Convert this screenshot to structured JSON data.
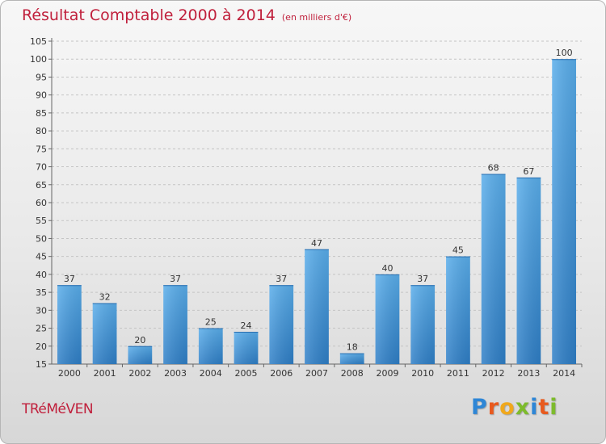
{
  "chart_data": {
    "type": "bar",
    "title": "Résultat Comptable 2000 à 2014",
    "subtitle": "(en milliers d'€)",
    "categories": [
      "2000",
      "2001",
      "2002",
      "2003",
      "2004",
      "2005",
      "2006",
      "2007",
      "2008",
      "2009",
      "2010",
      "2011",
      "2012",
      "2013",
      "2014"
    ],
    "values": [
      37,
      32,
      20,
      37,
      25,
      24,
      37,
      47,
      18,
      40,
      37,
      45,
      68,
      67,
      100
    ],
    "ylim": [
      15,
      105
    ],
    "yticks": [
      15,
      20,
      25,
      30,
      35,
      40,
      45,
      50,
      55,
      60,
      65,
      70,
      75,
      80,
      85,
      90,
      95,
      100,
      105
    ],
    "grid": "horizontal dashed",
    "bar_color": "#3f93d9"
  },
  "commune": "TRéMéVEN",
  "logo": {
    "letters": [
      "P",
      "r",
      "o",
      "x",
      "i",
      "t",
      "i"
    ],
    "colors": [
      "#2e86d6",
      "#e85a1e",
      "#f0a81c",
      "#7dbb2c",
      "#2e86d6",
      "#e85a1e",
      "#7dbb2c"
    ]
  }
}
